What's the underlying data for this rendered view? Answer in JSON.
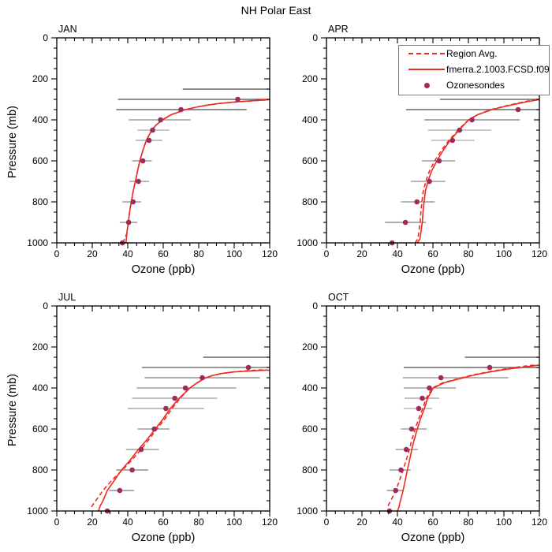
{
  "title": "NH Polar East",
  "legend": {
    "entries": [
      {
        "label": "Region Avg.",
        "swatch": "dashed-line"
      },
      {
        "label": "fmerra.2.1003.FCSD.f09.q",
        "swatch": "solid-line"
      },
      {
        "label": "Ozonesondes",
        "swatch": "dot"
      }
    ]
  },
  "colors": {
    "model_red": "#ee2b22",
    "sonde_dot": "#a02a5a",
    "axis": "#000000"
  },
  "axes": {
    "xlabel": "Ozone (ppb)",
    "ylabel": "Pressure (mb)",
    "xlim": [
      0,
      120
    ],
    "ylim": [
      0,
      1000
    ],
    "xticks": [
      0,
      20,
      40,
      60,
      80,
      100,
      120
    ],
    "yticks": [
      0,
      200,
      400,
      600,
      800,
      1000
    ],
    "x_minor_step": 5,
    "y_minor_step": 50,
    "grid": false
  },
  "chart_data": [
    {
      "type": "line",
      "panel": "JAN",
      "series": [
        {
          "name": "fmerra.2.1003.FCSD.f09.q",
          "style": "solid",
          "points": [
            [
              39,
              1000
            ],
            [
              39.5,
              950
            ],
            [
              40.3,
              900
            ],
            [
              41,
              850
            ],
            [
              42,
              800
            ],
            [
              43,
              750
            ],
            [
              44.3,
              700
            ],
            [
              45.5,
              650
            ],
            [
              46.8,
              600
            ],
            [
              48.5,
              550
            ],
            [
              50.5,
              500
            ],
            [
              53.5,
              450
            ],
            [
              56,
              425
            ],
            [
              59.5,
              400
            ],
            [
              64.5,
              375
            ],
            [
              72.5,
              350
            ],
            [
              77.5,
              340
            ],
            [
              83.5,
              330
            ],
            [
              91.5,
              320
            ],
            [
              101.5,
              312
            ],
            [
              111.5,
              306
            ],
            [
              120,
              301
            ]
          ]
        },
        {
          "name": "Region Avg.",
          "style": "dashed",
          "points": [
            [
              37,
              1000
            ],
            [
              38,
              985
            ],
            [
              39.2,
              960
            ],
            [
              39.6,
              950
            ],
            [
              40.3,
              900
            ],
            [
              41,
              850
            ],
            [
              42,
              800
            ],
            [
              43,
              750
            ],
            [
              44.3,
              700
            ],
            [
              45.5,
              650
            ],
            [
              46.8,
              600
            ],
            [
              48.5,
              550
            ],
            [
              50.5,
              500
            ],
            [
              53.5,
              450
            ],
            [
              56,
              425
            ],
            [
              59.5,
              400
            ],
            [
              64.5,
              375
            ],
            [
              72.5,
              350
            ],
            [
              77.5,
              340
            ],
            [
              83.5,
              330
            ],
            [
              91.5,
              320
            ],
            [
              101,
              313
            ],
            [
              110.5,
              307
            ],
            [
              120,
              302
            ]
          ]
        }
      ],
      "sondes": [
        {
          "p": 250,
          "v": null,
          "lo": 71,
          "hi": 120,
          "shade": "#4a4a4a"
        },
        {
          "p": 300,
          "v": 102,
          "lo": 34.5,
          "hi": 120,
          "shade": "#4a4a4a"
        },
        {
          "p": 350,
          "v": 70,
          "lo": 33.5,
          "hi": 107,
          "shade": "#4a4a4a"
        },
        {
          "p": 400,
          "v": 58.5,
          "lo": 40.5,
          "hi": 75.5,
          "shade": "#8a8a8a"
        },
        {
          "p": 450,
          "v": 54,
          "lo": 45.5,
          "hi": 63.5,
          "shade": "#ababab"
        },
        {
          "p": 500,
          "v": 52,
          "lo": 44.5,
          "hi": 59.5,
          "shade": "#9a9a9a"
        },
        {
          "p": 600,
          "v": 48.5,
          "lo": 42.5,
          "hi": 53.5,
          "shade": "#8a8a8a"
        },
        {
          "p": 700,
          "v": 46,
          "lo": 41,
          "hi": 52,
          "shade": "#8a8a8a"
        },
        {
          "p": 800,
          "v": 43,
          "lo": 37,
          "hi": 47.5,
          "shade": "#8a8a8a"
        },
        {
          "p": 900,
          "v": 40.5,
          "lo": 35.5,
          "hi": 45.5,
          "shade": "#8a8a8a"
        },
        {
          "p": 1000,
          "v": 37,
          "lo": 31,
          "hi": 43,
          "shade": "#6e6e6e"
        }
      ]
    },
    {
      "type": "line",
      "panel": "APR",
      "series": [
        {
          "name": "fmerra.2.1003.FCSD.f09.q",
          "style": "solid",
          "points": [
            [
              51.2,
              1000
            ],
            [
              52.7,
              980
            ],
            [
              53.2,
              950
            ],
            [
              54,
              900
            ],
            [
              54.4,
              850
            ],
            [
              55,
              800
            ],
            [
              55.7,
              750
            ],
            [
              57.2,
              700
            ],
            [
              59.2,
              650
            ],
            [
              62.2,
              600
            ],
            [
              65.7,
              550
            ],
            [
              69.7,
              500
            ],
            [
              74.7,
              450
            ],
            [
              80.2,
              400
            ],
            [
              85.2,
              375
            ],
            [
              93.2,
              350
            ],
            [
              100.2,
              335
            ],
            [
              108.2,
              320
            ],
            [
              115.2,
              308
            ],
            [
              120,
              301
            ]
          ]
        },
        {
          "name": "Region Avg.",
          "style": "dashed",
          "points": [
            [
              50,
              1000
            ],
            [
              51.5,
              980
            ],
            [
              52,
              950
            ],
            [
              52.8,
              900
            ],
            [
              53.2,
              850
            ],
            [
              53.8,
              800
            ],
            [
              54.5,
              750
            ],
            [
              56,
              700
            ],
            [
              58,
              650
            ],
            [
              61,
              600
            ],
            [
              64.7,
              550
            ],
            [
              69,
              500
            ],
            [
              74.2,
              450
            ],
            [
              80,
              400
            ],
            [
              85,
              375
            ],
            [
              92.7,
              350
            ],
            [
              99.5,
              335
            ],
            [
              107,
              320
            ],
            [
              113.5,
              308
            ],
            [
              119,
              302
            ]
          ]
        }
      ],
      "sondes": [
        {
          "p": 300,
          "v": null,
          "lo": 64,
          "hi": 120,
          "shade": "#4a4a4a"
        },
        {
          "p": 350,
          "v": 108,
          "lo": 44.9,
          "hi": 120,
          "shade": "#4a4a4a"
        },
        {
          "p": 400,
          "v": 82,
          "lo": 55.2,
          "hi": 109,
          "shade": "#7a7a7a"
        },
        {
          "p": 450,
          "v": 75,
          "lo": 57.2,
          "hi": 93,
          "shade": "#ababab"
        },
        {
          "p": 500,
          "v": 71,
          "lo": 59,
          "hi": 83.5,
          "shade": "#ababab"
        },
        {
          "p": 600,
          "v": 63.5,
          "lo": 53.8,
          "hi": 72.5,
          "shade": "#8a8a8a"
        },
        {
          "p": 700,
          "v": 58,
          "lo": 47.5,
          "hi": 67,
          "shade": "#8a8a8a"
        },
        {
          "p": 800,
          "v": 51,
          "lo": 42,
          "hi": 61,
          "shade": "#8a8a8a"
        },
        {
          "p": 900,
          "v": 44.5,
          "lo": 33,
          "hi": 56,
          "shade": "#7a7a7a"
        },
        {
          "p": 1000,
          "v": 37,
          "lo": 26.5,
          "hi": 48,
          "shade": "#7a7a7a"
        }
      ]
    },
    {
      "type": "line",
      "panel": "JUL",
      "series": [
        {
          "name": "fmerra.2.1003.FCSD.f09.q",
          "style": "solid",
          "points": [
            [
              23.5,
              1000
            ],
            [
              24.5,
              975
            ],
            [
              26,
              950
            ],
            [
              28.5,
              900
            ],
            [
              32.5,
              850
            ],
            [
              36.5,
              800
            ],
            [
              41.5,
              750
            ],
            [
              46,
              700
            ],
            [
              51,
              650
            ],
            [
              55.5,
              600
            ],
            [
              60,
              550
            ],
            [
              64,
              500
            ],
            [
              69,
              450
            ],
            [
              75,
              400
            ],
            [
              79,
              375
            ],
            [
              84,
              350
            ],
            [
              87.5,
              340
            ],
            [
              92.5,
              330
            ],
            [
              99.5,
              322
            ],
            [
              108.5,
              317
            ],
            [
              116.5,
              314
            ],
            [
              120,
              313
            ]
          ]
        },
        {
          "name": "Region Avg.",
          "style": "dashed",
          "points": [
            [
              19.5,
              980
            ],
            [
              22,
              950
            ],
            [
              26,
              900
            ],
            [
              31,
              850
            ],
            [
              37,
              800
            ],
            [
              42.5,
              750
            ],
            [
              47.5,
              700
            ],
            [
              52,
              650
            ],
            [
              56.5,
              600
            ],
            [
              61,
              550
            ],
            [
              65,
              500
            ],
            [
              69.5,
              450
            ],
            [
              75,
              400
            ],
            [
              79,
              375
            ],
            [
              84,
              350
            ],
            [
              87.5,
              340
            ],
            [
              92.5,
              330
            ],
            [
              99.5,
              322
            ],
            [
              107,
              316
            ],
            [
              114,
              312
            ],
            [
              118,
              311
            ]
          ]
        }
      ],
      "sondes": [
        {
          "p": 250,
          "v": null,
          "lo": 82.5,
          "hi": 120,
          "shade": "#4a4a4a"
        },
        {
          "p": 300,
          "v": 108,
          "lo": 48,
          "hi": 120,
          "shade": "#5a5a5a"
        },
        {
          "p": 350,
          "v": 82,
          "lo": 49.5,
          "hi": 114.5,
          "shade": "#7a7a7a"
        },
        {
          "p": 400,
          "v": 72.5,
          "lo": 45,
          "hi": 101,
          "shade": "#8a8a8a"
        },
        {
          "p": 450,
          "v": 66.5,
          "lo": 42.5,
          "hi": 90.5,
          "shade": "#9a9a9a"
        },
        {
          "p": 500,
          "v": 61.5,
          "lo": 40,
          "hi": 83,
          "shade": "#9a9a9a"
        },
        {
          "p": 600,
          "v": 55,
          "lo": 45.5,
          "hi": 63.5,
          "shade": "#8a8a8a"
        },
        {
          "p": 700,
          "v": 47.5,
          "lo": 39,
          "hi": 57.5,
          "shade": "#8a8a8a"
        },
        {
          "p": 800,
          "v": 42.5,
          "lo": 33.5,
          "hi": 51.5,
          "shade": "#7a7a7a"
        },
        {
          "p": 900,
          "v": 35.5,
          "lo": 29.5,
          "hi": 43.5,
          "shade": "#7a7a7a"
        },
        {
          "p": 1000,
          "v": 28.5,
          "lo": 22.5,
          "hi": 35.5,
          "shade": "#6e6e6e"
        }
      ]
    },
    {
      "type": "line",
      "panel": "OCT",
      "series": [
        {
          "name": "fmerra.2.1003.FCSD.f09.q",
          "style": "solid",
          "points": [
            [
              40,
              1000
            ],
            [
              40.7,
              985
            ],
            [
              41.7,
              950
            ],
            [
              43.2,
              900
            ],
            [
              44.4,
              850
            ],
            [
              45.6,
              800
            ],
            [
              46.9,
              750
            ],
            [
              48.1,
              700
            ],
            [
              49.5,
              650
            ],
            [
              51.2,
              600
            ],
            [
              53,
              550
            ],
            [
              55.2,
              500
            ],
            [
              57,
              450
            ],
            [
              60.2,
              400
            ],
            [
              66.2,
              375
            ],
            [
              77.2,
              350
            ],
            [
              84.2,
              335
            ],
            [
              93.2,
              320
            ],
            [
              102.2,
              308
            ],
            [
              111.2,
              298
            ],
            [
              118.2,
              290
            ],
            [
              120,
              288
            ]
          ]
        },
        {
          "name": "Region Avg.",
          "style": "dashed",
          "points": [
            [
              34.7,
              975
            ],
            [
              36.2,
              950
            ],
            [
              39.2,
              900
            ],
            [
              41.2,
              850
            ],
            [
              43.2,
              800
            ],
            [
              45,
              750
            ],
            [
              46.7,
              700
            ],
            [
              48.2,
              650
            ],
            [
              50,
              600
            ],
            [
              52,
              550
            ],
            [
              54.2,
              500
            ],
            [
              56.2,
              450
            ],
            [
              59.7,
              400
            ],
            [
              65.5,
              375
            ],
            [
              76.2,
              350
            ],
            [
              83.2,
              335
            ],
            [
              92.2,
              320
            ],
            [
              102.2,
              305
            ],
            [
              110.2,
              295
            ],
            [
              115,
              290
            ],
            [
              117,
              289
            ]
          ]
        }
      ],
      "sondes": [
        {
          "p": 250,
          "v": null,
          "lo": 78,
          "hi": 120,
          "shade": "#4a4a4a"
        },
        {
          "p": 300,
          "v": 92,
          "lo": 43.5,
          "hi": 120,
          "shade": "#4a4a4a"
        },
        {
          "p": 350,
          "v": 64.5,
          "lo": 43,
          "hi": 102.5,
          "shade": "#8a8a8a"
        },
        {
          "p": 400,
          "v": 58,
          "lo": 43.5,
          "hi": 73,
          "shade": "#8a8a8a"
        },
        {
          "p": 450,
          "v": 54,
          "lo": 44,
          "hi": 63.5,
          "shade": "#9a9a9a"
        },
        {
          "p": 500,
          "v": 52,
          "lo": 43.5,
          "hi": 59.5,
          "shade": "#ababab"
        },
        {
          "p": 600,
          "v": 48,
          "lo": 42,
          "hi": 56.5,
          "shade": "#8a8a8a"
        },
        {
          "p": 700,
          "v": 45,
          "lo": 39,
          "hi": 51.5,
          "shade": "#8a8a8a"
        },
        {
          "p": 800,
          "v": 42,
          "lo": 35.5,
          "hi": 47.5,
          "shade": "#8a8a8a"
        },
        {
          "p": 900,
          "v": 39,
          "lo": 34,
          "hi": 43.5,
          "shade": "#7a7a7a"
        },
        {
          "p": 1000,
          "v": 35.5,
          "lo": 30,
          "hi": 42,
          "shade": "#6e6e6e"
        }
      ]
    }
  ]
}
